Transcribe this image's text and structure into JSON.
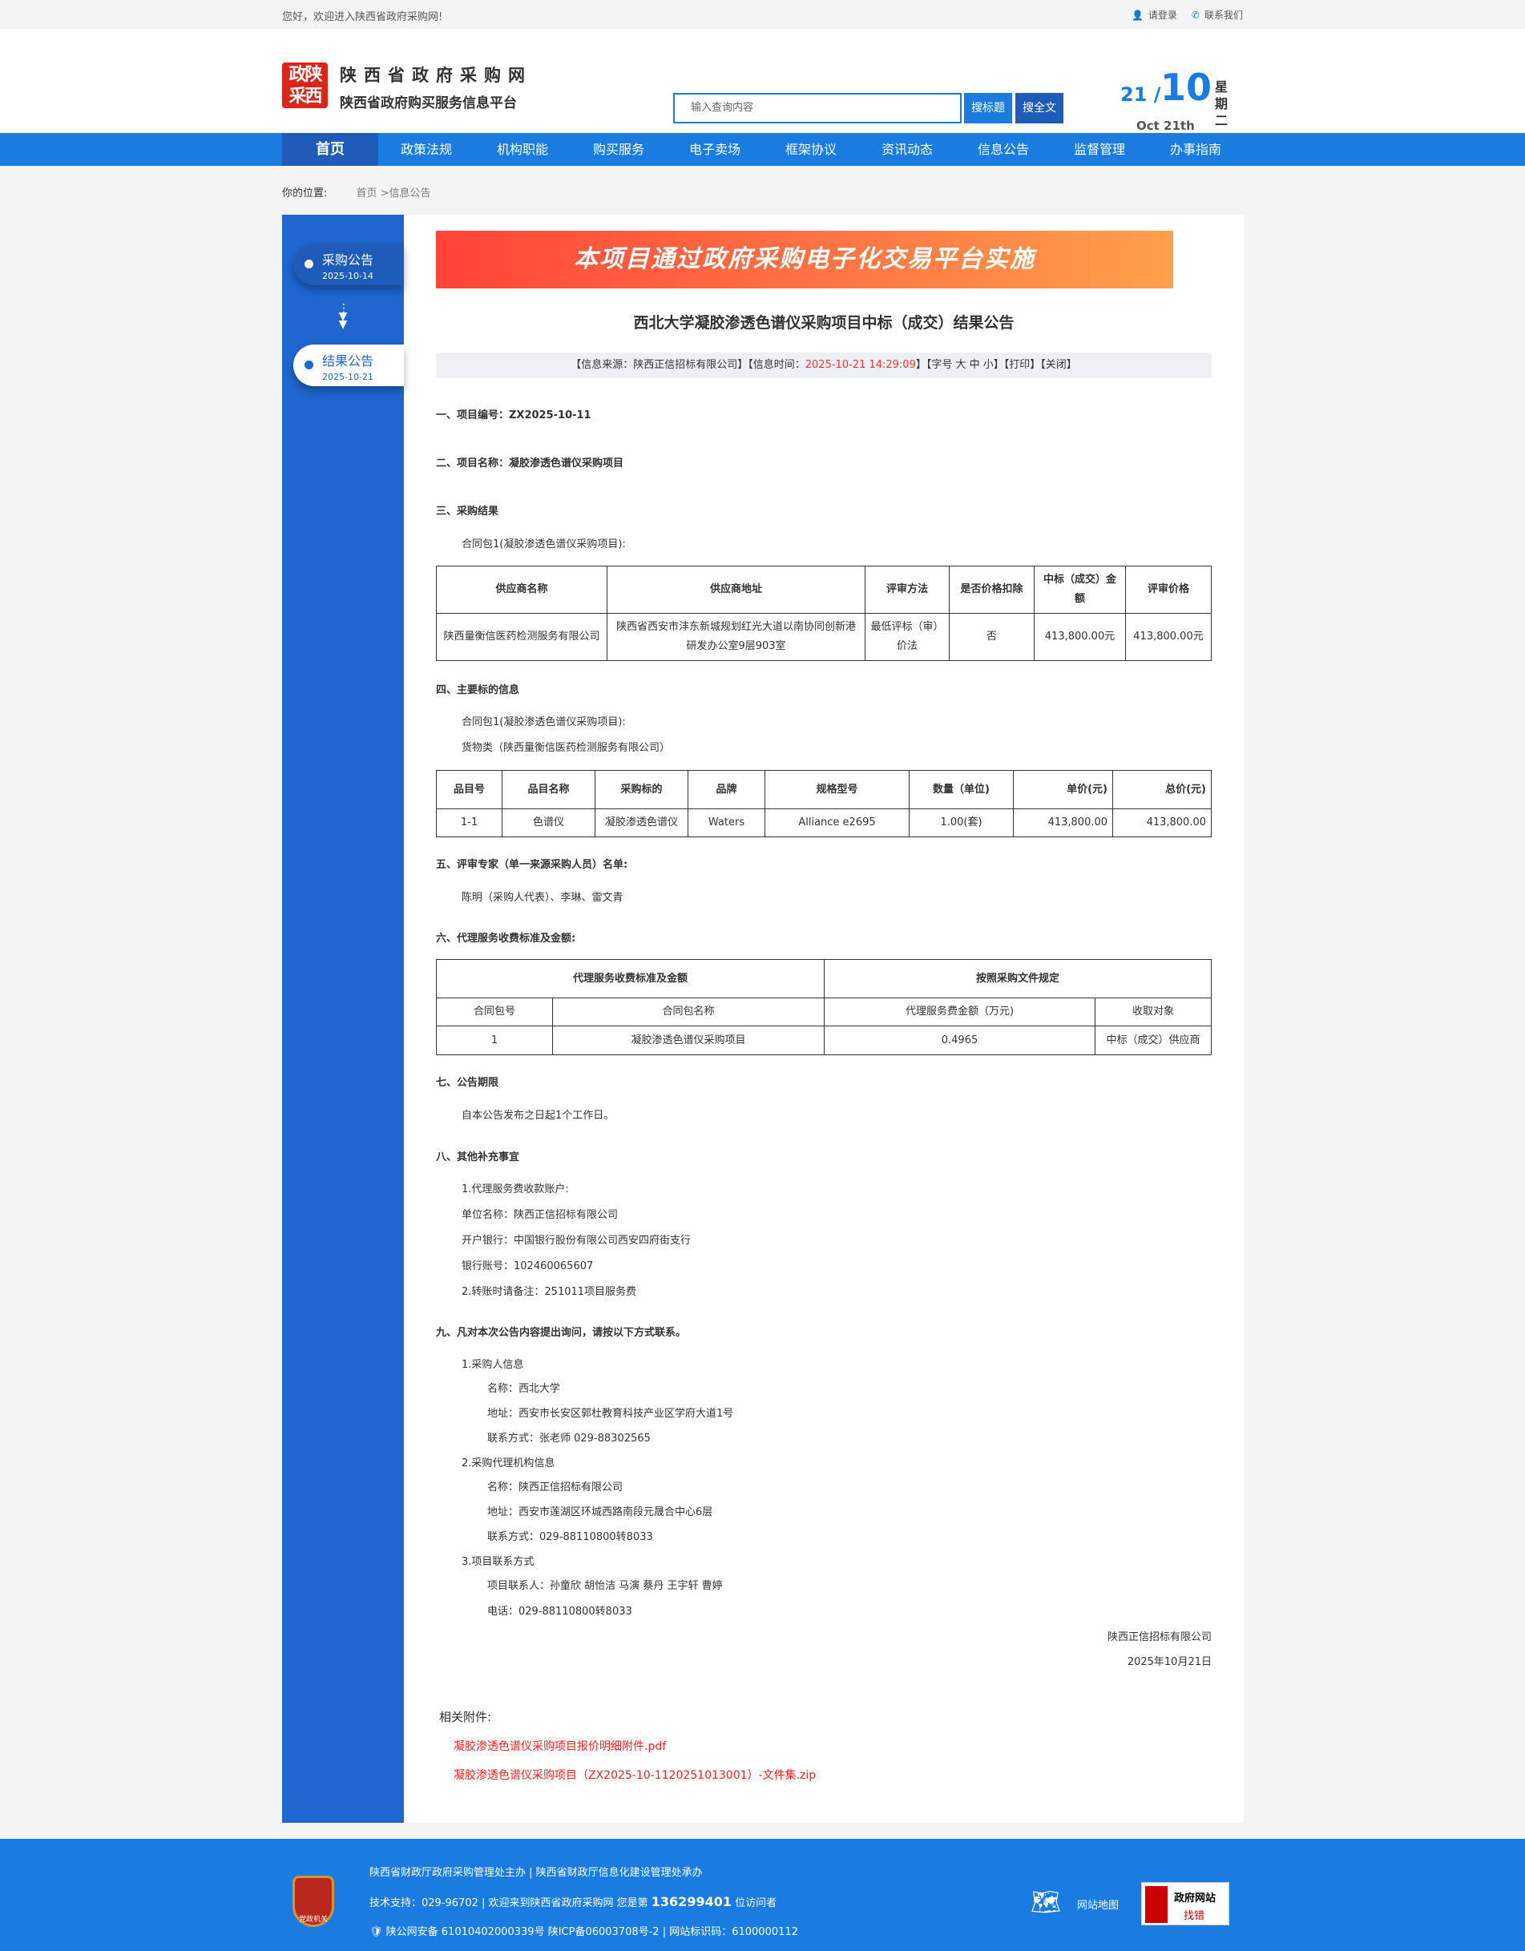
{
  "topbar": {
    "welcome": "您好，欢迎进入陕西省政府采购网!",
    "login": "请登录",
    "contact": "联系我们"
  },
  "header": {
    "logo_text": "政陕采西",
    "name": "陕西省政府采购网",
    "subname": "陕西省政府购买服务信息平台",
    "search_placeholder": "输入查询内容",
    "search_title": "搜标题",
    "search_full": "搜全文",
    "date_day": "21",
    "date_month": "10",
    "date_en": "Oct 21th",
    "weekday": "星期二"
  },
  "nav": [
    "首页",
    "政策法规",
    "机构职能",
    "购买服务",
    "电子卖场",
    "框架协议",
    "资讯动态",
    "信息公告",
    "监督管理",
    "办事指南"
  ],
  "breadcrumb": {
    "label": "你的位置:",
    "path": "首页 >信息公告"
  },
  "timeline": [
    {
      "title": "采购公告",
      "date": "2025-10-14"
    },
    {
      "title": "结果公告",
      "date": "2025-10-21"
    }
  ],
  "article": {
    "banner": "本项目通过政府采购电子化交易平台实施",
    "title": "西北大学凝胶渗透色谱仪采购项目中标（成交）结果公告",
    "info": {
      "source": "【信息来源：陕西正信招标有限公司】【信息时间：",
      "time": "2025-10-21 14:29:09",
      "rest": "】【字号 大 中 小】【打印】【关闭】"
    },
    "s1": "一、项目编号：ZX2025-10-11",
    "s2": "二、项目名称：凝胶渗透色谱仪采购项目",
    "s3": "三、采购结果",
    "s3_pkg": "合同包1(凝胶渗透色谱仪采购项目):",
    "t1": {
      "headers": [
        "供应商名称",
        "供应商地址",
        "评审方法",
        "是否价格扣除",
        "中标（成交）金额",
        "评审价格"
      ],
      "row": [
        "陕西量衡信医药检测服务有限公司",
        "陕西省西安市沣东新城规划红光大道以南协同创新港研发办公室9层903室",
        "最低评标（审）价法",
        "否",
        "413,800.00元",
        "413,800.00元"
      ]
    },
    "s4": "四、主要标的信息",
    "s4_pkg": "合同包1(凝胶渗透色谱仪采购项目):",
    "s4_cat": "货物类（陕西量衡信医药检测服务有限公司）",
    "t2": {
      "headers": [
        "品目号",
        "品目名称",
        "采购标的",
        "品牌",
        "规格型号",
        "数量（单位)",
        "单价(元)",
        "总价(元)"
      ],
      "row": [
        "1-1",
        "色谱仪",
        "凝胶渗透色谱仪",
        "Waters",
        "Alliance e2695",
        "1.00(套)",
        "413,800.00",
        "413,800.00"
      ]
    },
    "s5": "五、评审专家（单一来源采购人员）名单:",
    "s5_names": "陈明（采购人代表）、李琳、雷文青",
    "s6": "六、代理服务收费标准及金额:",
    "t3": {
      "top": [
        "代理服务收费标准及金额",
        "按照采购文件规定"
      ],
      "headers": [
        "合同包号",
        "合同包名称",
        "代理服务费金额（万元)",
        "收取对象"
      ],
      "row": [
        "1",
        "凝胶渗透色谱仪采购项目",
        "0.4965",
        "中标（成交）供应商"
      ]
    },
    "s7": "七、公告期限",
    "s7_text": "自本公告发布之日起1个工作日。",
    "s8": "八、其他补充事宜",
    "s8_lines": [
      "1.代理服务费收款账户:",
      "单位名称：陕西正信招标有限公司",
      "开户银行：中国银行股份有限公司西安四府街支行",
      "银行账号：102460065607",
      "2.转账时请备注：251011项目服务费"
    ],
    "s9": "九、凡对本次公告内容提出询问，请按以下方式联系。",
    "s9_1": "1.采购人信息",
    "s9_1_lines": [
      "名称：西北大学",
      "地址：西安市长安区郭杜教育科技产业区学府大道1号",
      "联系方式：张老师 029-88302565"
    ],
    "s9_2": "2.采购代理机构信息",
    "s9_2_lines": [
      "名称：陕西正信招标有限公司",
      "地址：西安市莲湖区环城西路南段元晟合中心6层",
      "联系方式：029-88110800转8033"
    ],
    "s9_3": "3.项目联系方式",
    "s9_3_lines": [
      "项目联系人：孙童欣 胡怡洁 马演 蔡丹 王宇轩 曹婷",
      "电话：029-88110800转8033"
    ],
    "sign": "陕西正信招标有限公司",
    "sign_date": "2025年10月21日",
    "attach_label": "相关附件:",
    "attachments": [
      "凝胶渗透色谱仪采购项目报价明细附件.pdf",
      "凝胶渗透色谱仪采购项目（ZX2025-10-1120251013001）-文件集.zip"
    ]
  },
  "footer": {
    "badge": "党政机关",
    "line1": "陕西省财政厅政府采购管理处主办 | 陕西省财政厅信息化建设管理处承办",
    "line2a": "技术支持：029-96702 | 欢迎来到陕西省政府采购网 您是第 ",
    "visitors": "136299401",
    "line2b": " 位访问者",
    "line3": "陕公网安备 61010402000339号   陕ICP备06003708号-2  |  网站标识码：6100000112",
    "sitemap": "网站地图",
    "gov_a": "政府网站",
    "gov_b": "找错"
  },
  "colors": {
    "primary": "#1a7ce0",
    "nav_active": "#1f5cba",
    "sidebar": "#1f66d0",
    "link": "#ff2222"
  }
}
